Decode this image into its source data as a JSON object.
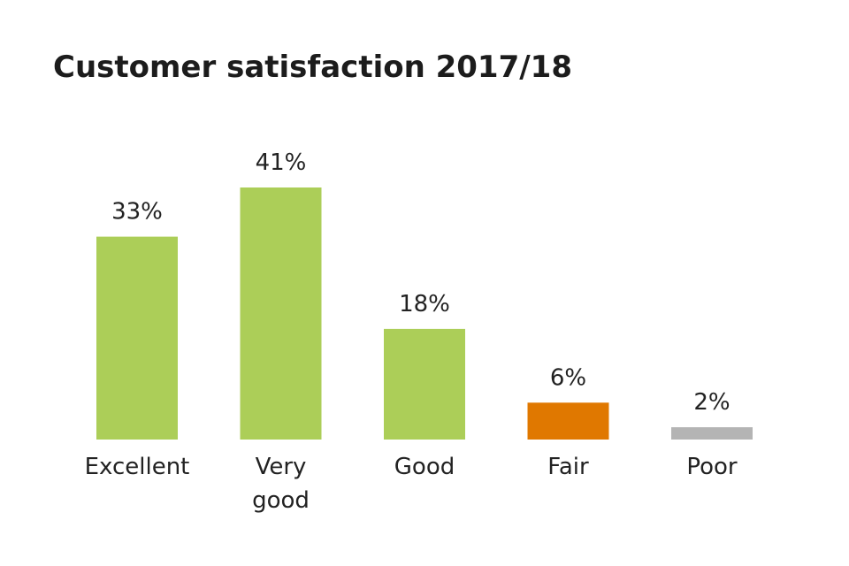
{
  "chart_data": {
    "type": "bar",
    "title": "Customer satisfaction 2017/18",
    "categories": [
      "Excellent",
      "Very good",
      "Good",
      "Fair",
      "Poor"
    ],
    "category_lines": [
      [
        "Excellent"
      ],
      [
        "Very",
        "good"
      ],
      [
        "Good"
      ],
      [
        "Fair"
      ],
      [
        "Poor"
      ]
    ],
    "values": [
      33,
      41,
      18,
      6,
      2
    ],
    "value_labels": [
      "33%",
      "41%",
      "18%",
      "6%",
      "2%"
    ],
    "colors": [
      "#acce58",
      "#acce58",
      "#acce58",
      "#e07800",
      "#b4b4b4"
    ],
    "ylim": [
      0,
      41
    ],
    "grid": false,
    "legend": "none"
  }
}
